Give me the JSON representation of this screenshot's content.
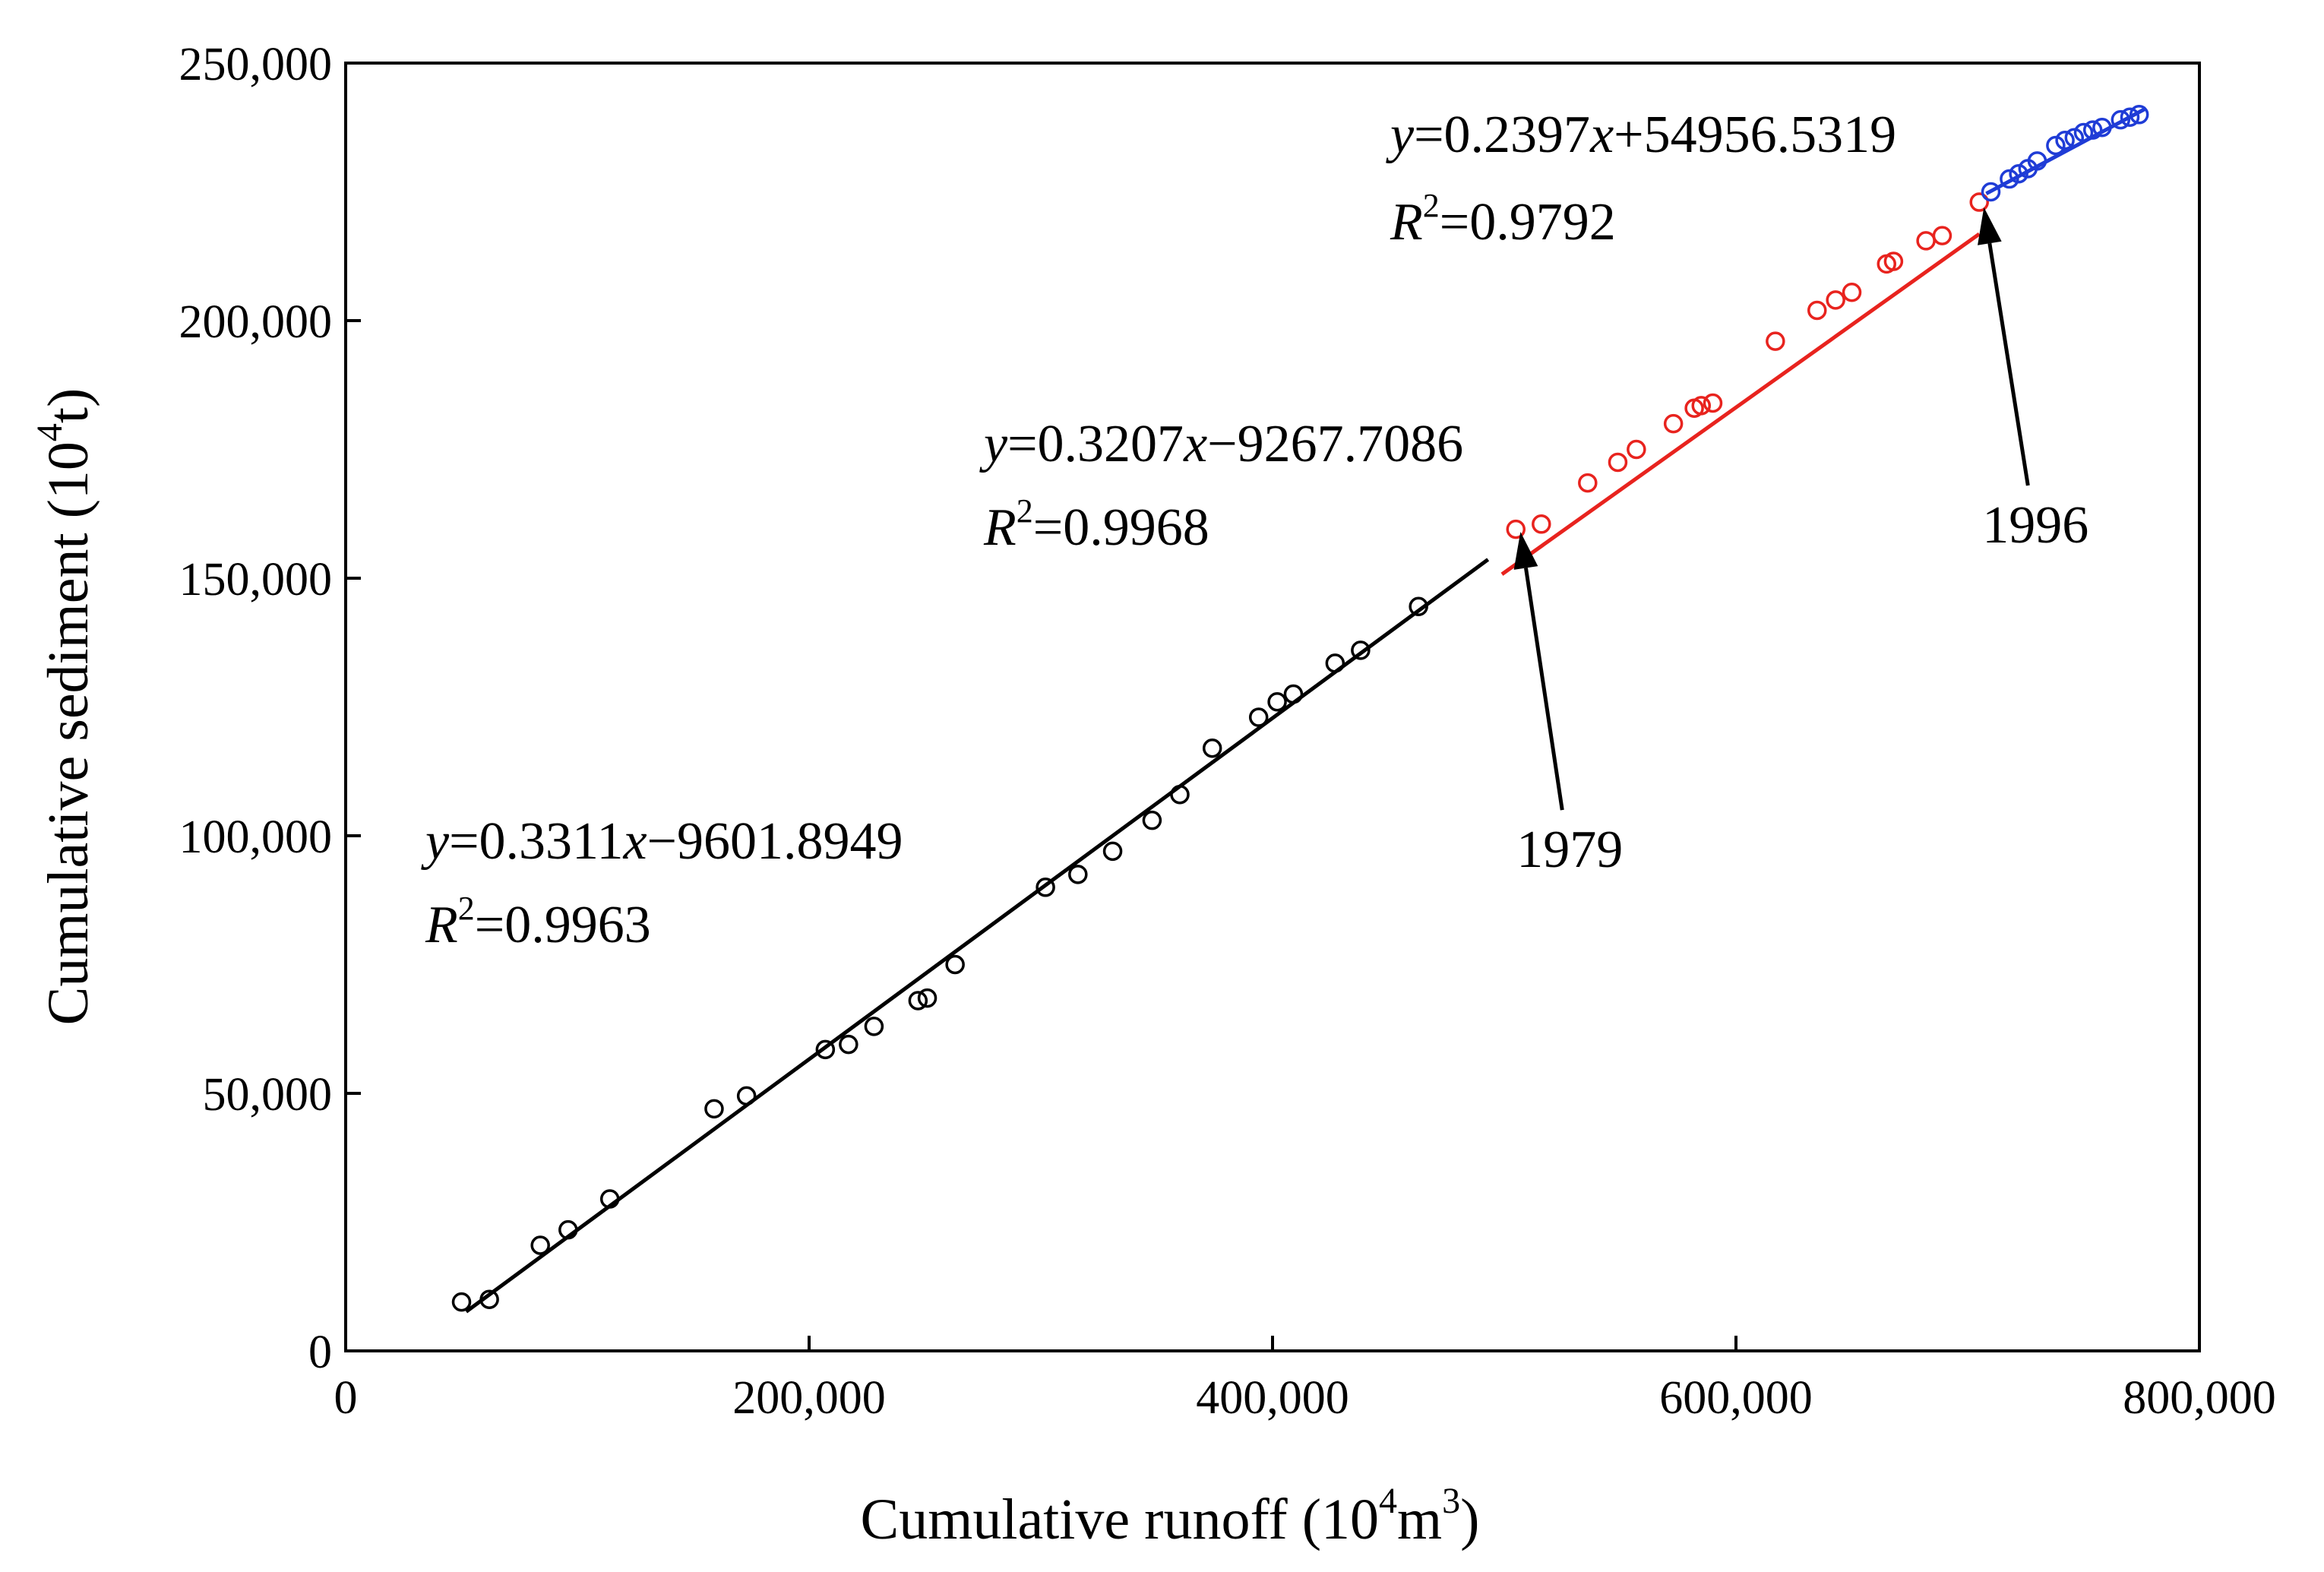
{
  "chart_data": {
    "type": "scatter",
    "xlabel": {
      "main": "Cumulative runoff (10",
      "sup1": "4",
      "mid": "m",
      "sup2": "3",
      "end": ")"
    },
    "ylabel": {
      "main": "Cumulative sediment (10",
      "sup": "4",
      "end": "t)"
    },
    "xlim": [
      0,
      800000
    ],
    "ylim": [
      0,
      250000
    ],
    "x_ticks": [
      0,
      200000,
      400000,
      600000,
      800000
    ],
    "x_tick_labels": [
      "0",
      "200,000",
      "400,000",
      "600,000",
      "800,000"
    ],
    "y_ticks": [
      0,
      50000,
      100000,
      150000,
      200000,
      250000
    ],
    "y_tick_labels": [
      "0",
      "50,000",
      "100,000",
      "150,000",
      "200,000",
      "250,000"
    ],
    "grid": false,
    "series": [
      {
        "color": "#000000",
        "marker": "open-circle",
        "fit": {
          "slope": 0.3311,
          "intercept": -9601.8949,
          "x_range": [
            52000,
            493000
          ]
        },
        "equation": {
          "y": "y",
          "rest": "=0.3311",
          "x": "x",
          "tail": "−9601.8949"
        },
        "r2": {
          "r": "R",
          "sup": "2",
          "rest": "=0.9963"
        },
        "points": [
          [
            50000,
            9500
          ],
          [
            62000,
            10000
          ],
          [
            84000,
            20500
          ],
          [
            96000,
            23500
          ],
          [
            114000,
            29500
          ],
          [
            159000,
            47000
          ],
          [
            173000,
            49500
          ],
          [
            207000,
            58500
          ],
          [
            217000,
            59500
          ],
          [
            228000,
            63000
          ],
          [
            247000,
            68000
          ],
          [
            251000,
            68500
          ],
          [
            263000,
            75000
          ],
          [
            302000,
            90000
          ],
          [
            316000,
            92500
          ],
          [
            331000,
            97000
          ],
          [
            348000,
            103000
          ],
          [
            360000,
            108000
          ],
          [
            374000,
            117000
          ],
          [
            394000,
            123000
          ],
          [
            402000,
            126000
          ],
          [
            409000,
            127500
          ],
          [
            427000,
            133500
          ],
          [
            438000,
            136000
          ],
          [
            463000,
            144500
          ]
        ]
      },
      {
        "color": "#e8231e",
        "marker": "open-circle",
        "fit": {
          "slope": 0.3207,
          "intercept": -9267.7086,
          "x_range": [
            499000,
            705000
          ]
        },
        "equation": {
          "y": "y",
          "rest": "=0.3207",
          "x": "x",
          "tail": "−9267.7086"
        },
        "r2": {
          "r": "R",
          "sup": "2",
          "rest": "=0.9968"
        },
        "points": [
          [
            505000,
            159500
          ],
          [
            516000,
            160500
          ],
          [
            536000,
            168500
          ],
          [
            549000,
            172500
          ],
          [
            557000,
            175000
          ],
          [
            573000,
            180000
          ],
          [
            582000,
            183000
          ],
          [
            585000,
            183500
          ],
          [
            590000,
            184000
          ],
          [
            617000,
            196000
          ],
          [
            635000,
            202000
          ],
          [
            643000,
            204000
          ],
          [
            650000,
            205500
          ],
          [
            665000,
            211000
          ],
          [
            668000,
            211500
          ],
          [
            682000,
            215500
          ],
          [
            689000,
            216500
          ],
          [
            705000,
            223000
          ]
        ]
      },
      {
        "color": "#1f3cd6",
        "marker": "open-circle",
        "fit": {
          "slope": 0.2397,
          "intercept": 54956.5319,
          "x_range": [
            708000,
            777000
          ]
        },
        "equation": {
          "y": "y",
          "rest": "=0.2397",
          "x": "x",
          "tail": "+54956.5319"
        },
        "r2": {
          "r": "R",
          "sup": "2",
          "rest": "=0.9792"
        },
        "points": [
          [
            710000,
            225000
          ],
          [
            718000,
            227500
          ],
          [
            722000,
            228500
          ],
          [
            726000,
            229500
          ],
          [
            730000,
            231000
          ],
          [
            738000,
            234000
          ],
          [
            742000,
            235000
          ],
          [
            746000,
            235500
          ],
          [
            750000,
            236500
          ],
          [
            754000,
            237000
          ],
          [
            758000,
            237500
          ],
          [
            766000,
            239000
          ],
          [
            770000,
            239500
          ],
          [
            774000,
            240000
          ]
        ]
      }
    ],
    "annotations": [
      {
        "text": "1979",
        "arrow_to": [
          507000,
          159000
        ],
        "label_at": [
          525000,
          105000
        ]
      },
      {
        "text": "1996",
        "arrow_to": [
          707000,
          222000
        ],
        "label_at": [
          726000,
          168000
        ]
      }
    ]
  }
}
